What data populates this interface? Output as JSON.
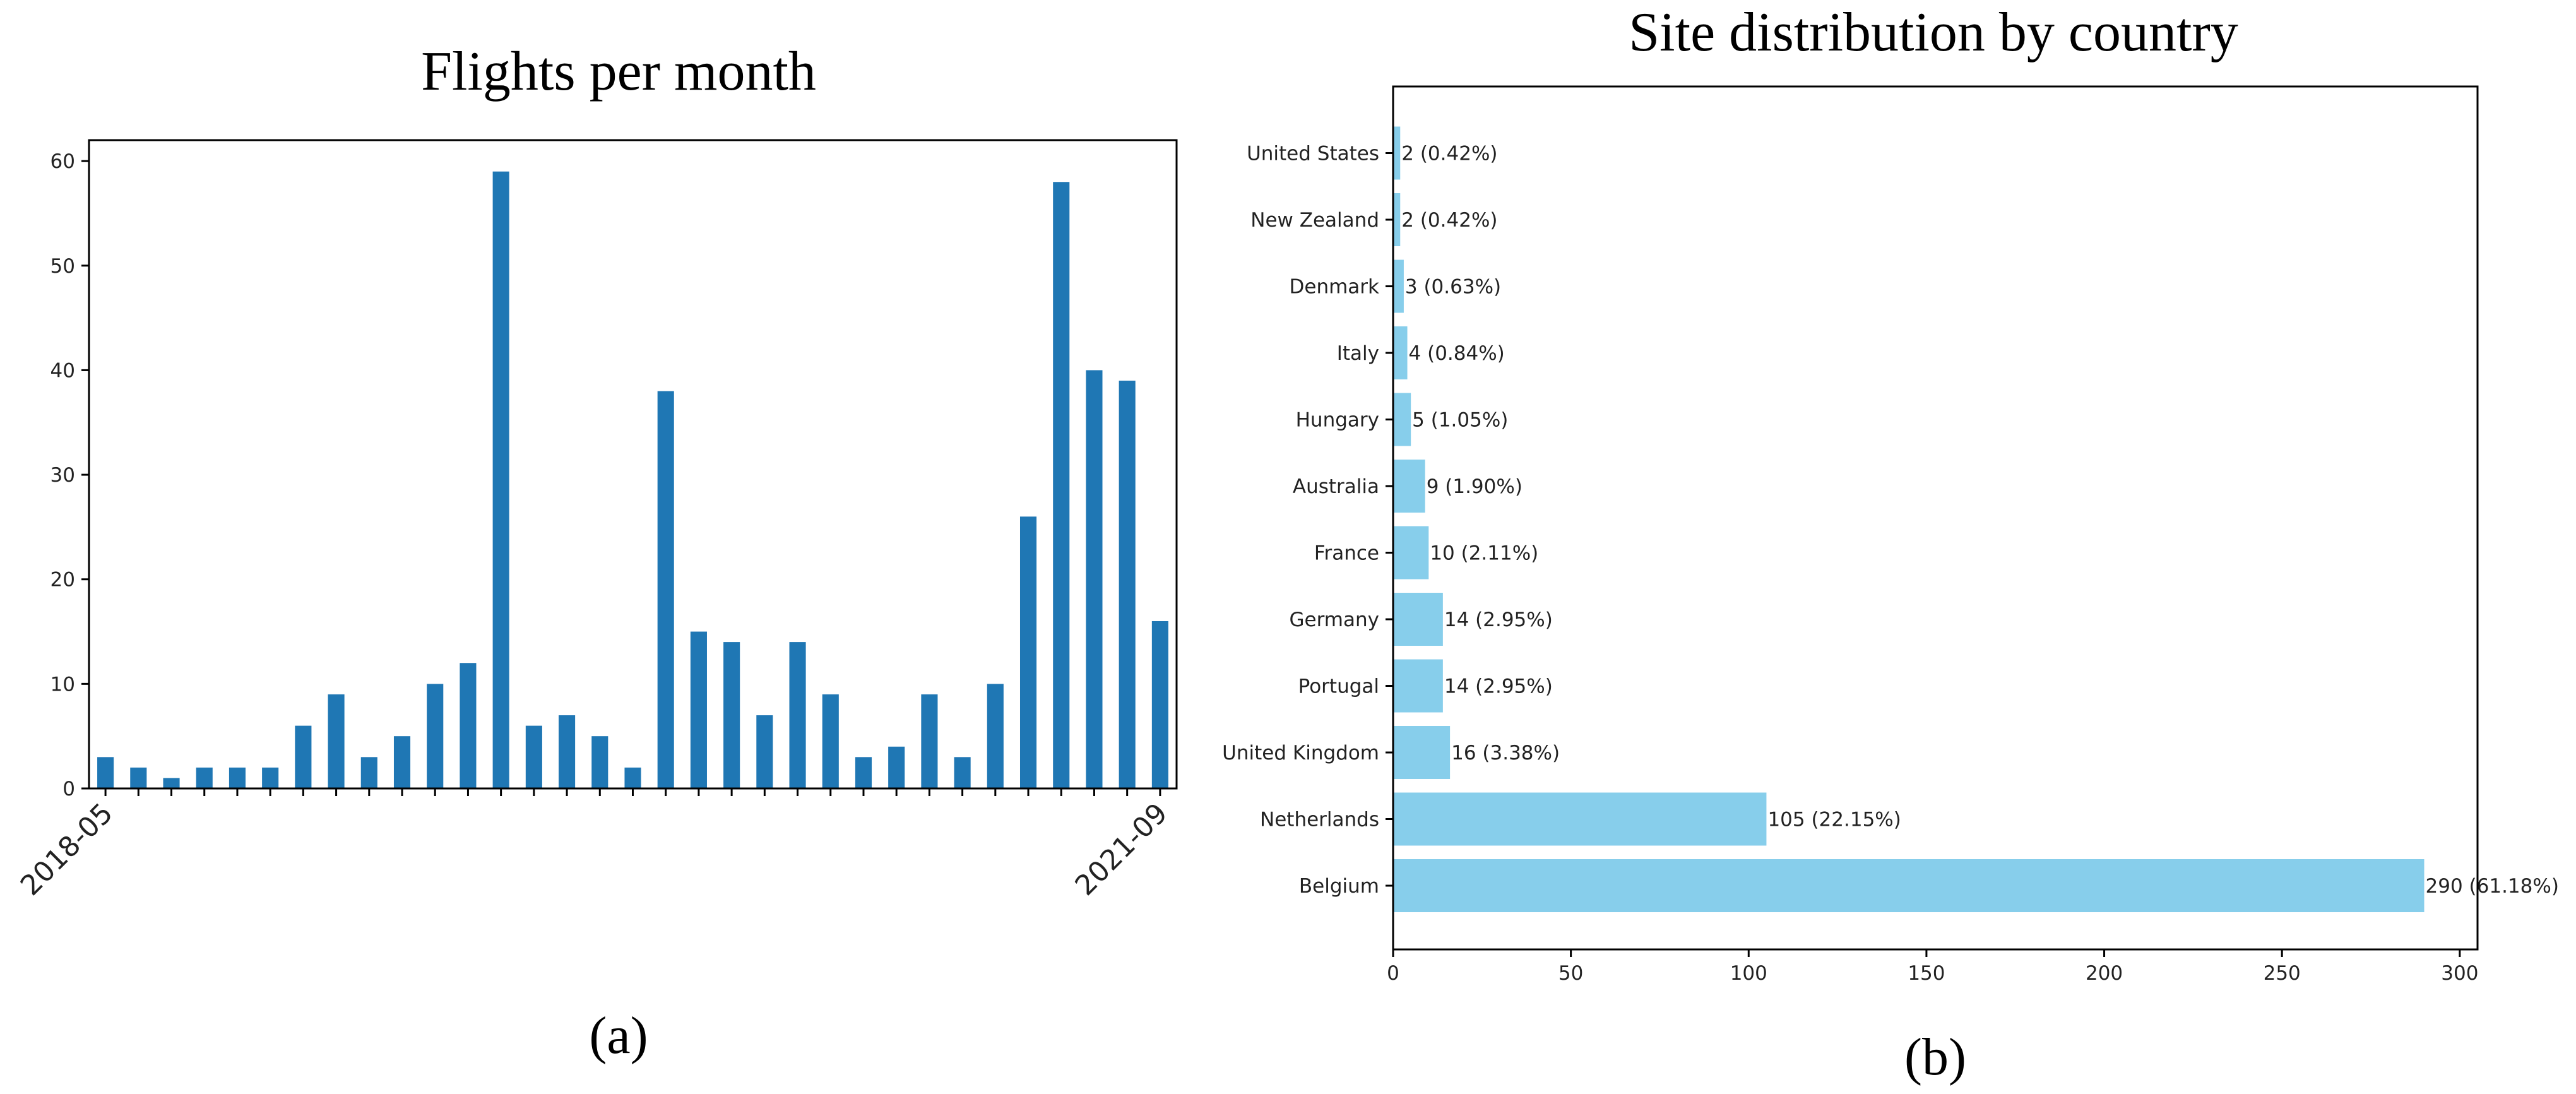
{
  "chart_data": [
    {
      "type": "bar",
      "title": "Flights per month",
      "caption": "(a)",
      "xlabel": "",
      "ylabel": "",
      "ylim": [
        0,
        62
      ],
      "yticks": [
        0,
        10,
        20,
        30,
        40,
        50,
        60
      ],
      "xtick_labels": [
        "2018-05",
        "2021-09"
      ],
      "values": [
        3,
        2,
        1,
        2,
        2,
        2,
        6,
        9,
        3,
        5,
        10,
        12,
        59,
        6,
        7,
        5,
        2,
        38,
        15,
        14,
        7,
        14,
        9,
        3,
        4,
        9,
        3,
        10,
        26,
        58,
        40,
        39,
        16
      ],
      "color": "#1f77b4"
    },
    {
      "type": "bar",
      "orientation": "horizontal",
      "title": "Site distribution by country",
      "caption": "(b)",
      "xlim": [
        0,
        305
      ],
      "xticks": [
        0,
        50,
        100,
        150,
        200,
        250,
        300
      ],
      "categories": [
        "United States",
        "New Zealand",
        "Denmark",
        "Italy",
        "Hungary",
        "Australia",
        "France",
        "Germany",
        "Portugal",
        "United Kingdom",
        "Netherlands",
        "Belgium"
      ],
      "values": [
        2,
        2,
        3,
        4,
        5,
        9,
        10,
        14,
        14,
        16,
        105,
        290
      ],
      "labels": [
        "2 (0.42%)",
        "2 (0.42%)",
        "3 (0.63%)",
        "4 (0.84%)",
        "5 (1.05%)",
        "9 (1.90%)",
        "10 (2.11%)",
        "14 (2.95%)",
        "14 (2.95%)",
        "16 (3.38%)",
        "105 (22.15%)",
        "290 (61.18%)"
      ],
      "color": "#87ceeb"
    }
  ]
}
